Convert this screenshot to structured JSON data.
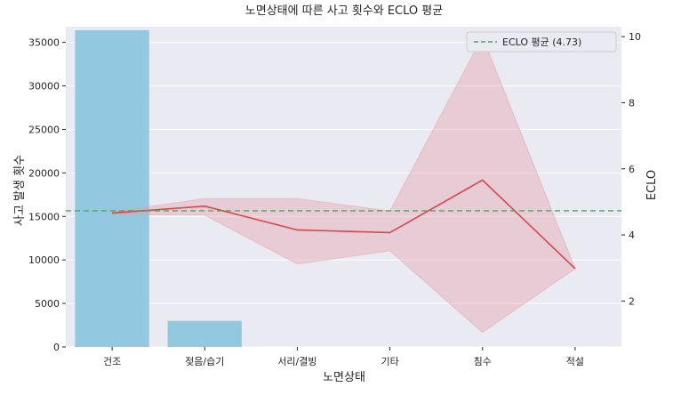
{
  "chart_data": {
    "type": "bar",
    "title": "노면상태에 따른 사고 횟수와 ECLO 평균",
    "xlabel": "노면상태",
    "ylabel": "사고 발생 횟수",
    "y2label": "ECLO",
    "categories": [
      "건조",
      "젖음/습기",
      "서리/결빙",
      "기타",
      "침수",
      "적설"
    ],
    "bar_values": [
      36400,
      3000,
      0,
      0,
      0,
      0
    ],
    "bar_color": "#92c9e0",
    "ylim": [
      0,
      36800
    ],
    "yticks": [
      0,
      5000,
      10000,
      15000,
      20000,
      25000,
      30000,
      35000
    ],
    "y2lim": [
      0.61,
      10.3
    ],
    "y2ticks": [
      2,
      4,
      6,
      8,
      10
    ],
    "line": {
      "values": [
        4.66,
        4.87,
        4.15,
        4.07,
        5.66,
        2.98
      ],
      "ci_low": [
        4.62,
        4.6,
        3.12,
        3.52,
        1.05,
        2.98
      ],
      "ci_high": [
        4.7,
        5.1,
        5.1,
        4.72,
        10.0,
        2.98
      ],
      "color": "#d9474f",
      "band_color": "#e6a0aa"
    },
    "mean_line": {
      "value": 4.73,
      "label": "ECLO 평균 (4.73)",
      "color": "#4ea45a"
    },
    "legend_position": "top-right",
    "grid": true,
    "background": "#eaeaf2"
  }
}
